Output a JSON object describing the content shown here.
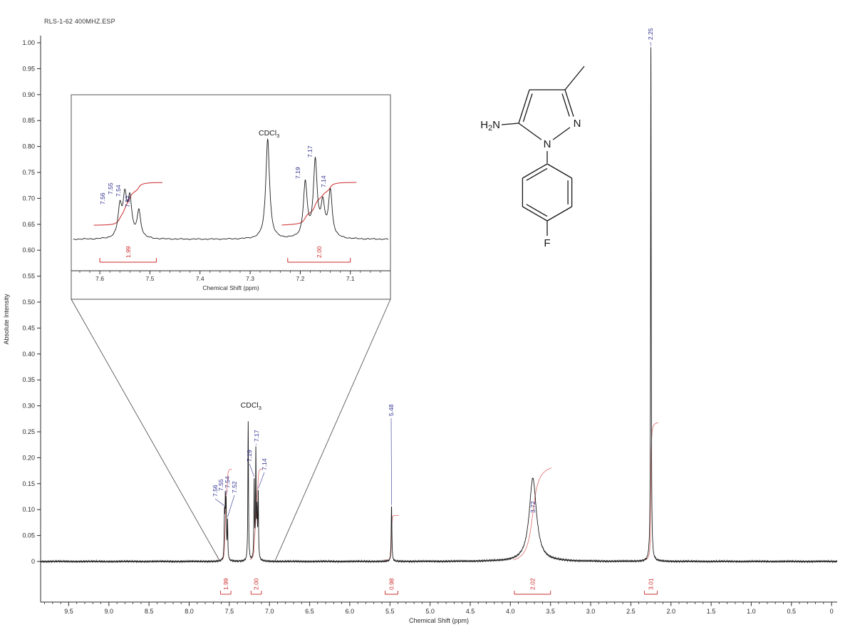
{
  "chart_data": {
    "type": "line",
    "title": "RLS-1-62 400MHZ.ESP",
    "xlabel": "Chemical Shift (ppm)",
    "ylabel": "Absolute Intensity",
    "x_axis_reversed": true,
    "xlim": [
      9.85,
      -0.07
    ],
    "ylim": [
      0,
      1.0
    ],
    "x_ticks": [
      "9.5",
      "9.0",
      "8.5",
      "8.0",
      "7.5",
      "7.0",
      "6.5",
      "6.0",
      "5.5",
      "5.0",
      "4.5",
      "4.0",
      "3.5",
      "3.0",
      "2.5",
      "2.0",
      "1.5",
      "1.0",
      "0.5",
      "0"
    ],
    "y_ticks": [
      "1.00",
      "0.95",
      "0.90",
      "0.85",
      "0.80",
      "0.75",
      "0.70",
      "0.65",
      "0.60",
      "0.55",
      "0.50",
      "0.45",
      "0.40",
      "0.35",
      "0.30",
      "0.25",
      "0.20",
      "0.15",
      "0.10",
      "0.05",
      "0"
    ],
    "solvent_label": "CDCl3",
    "peaks": [
      {
        "ppm": 7.56,
        "h": 0.08,
        "w": 0.0045
      },
      {
        "ppm": 7.55,
        "h": 0.105,
        "w": 0.0045
      },
      {
        "ppm": 7.54,
        "h": 0.1,
        "w": 0.0045
      },
      {
        "ppm": 7.522,
        "h": 0.072,
        "w": 0.0045
      },
      {
        "ppm": 7.265,
        "h": 0.27,
        "w": 0.0045
      },
      {
        "ppm": 7.19,
        "h": 0.148,
        "w": 0.0045
      },
      {
        "ppm": 7.17,
        "h": 0.205,
        "w": 0.0045
      },
      {
        "ppm": 7.155,
        "h": 0.085,
        "w": 0.0045
      },
      {
        "ppm": 7.14,
        "h": 0.125,
        "w": 0.0045
      },
      {
        "ppm": 5.48,
        "h": 0.105,
        "w": 0.005
      },
      {
        "ppm": 3.72,
        "h": 0.16,
        "w": 0.055
      },
      {
        "ppm": 2.25,
        "h": 0.99,
        "w": 0.0045
      }
    ],
    "peak_labels": [
      {
        "ppm": 7.56,
        "text": "7.56"
      },
      {
        "ppm": 7.55,
        "text": "7.55"
      },
      {
        "ppm": 7.54,
        "text": "7.54"
      },
      {
        "ppm": 7.522,
        "text": "7.52"
      },
      {
        "ppm": 7.19,
        "text": "7.19"
      },
      {
        "ppm": 7.17,
        "text": "7.17"
      },
      {
        "ppm": 7.14,
        "text": "7.14"
      },
      {
        "ppm": 5.48,
        "text": "5.48"
      },
      {
        "ppm": 3.72,
        "text": "3.72"
      },
      {
        "ppm": 2.25,
        "text": "2.25"
      }
    ],
    "integrals": [
      {
        "from": 7.61,
        "to": 7.48,
        "value": "1.99"
      },
      {
        "from": 7.23,
        "to": 7.1,
        "value": "2.00"
      },
      {
        "from": 5.56,
        "to": 5.4,
        "value": "0.98"
      },
      {
        "from": 3.95,
        "to": 3.5,
        "value": "2.02"
      },
      {
        "from": 2.33,
        "to": 2.17,
        "value": "3.01"
      }
    ],
    "inset": {
      "xlim": [
        7.657,
        7.02
      ],
      "xlabel": "Chemical Shift (ppm)",
      "x_ticks": [
        "7.6",
        "7.5",
        "7.4",
        "7.3",
        "7.2",
        "7.1"
      ],
      "solvent_label": "CDCl3",
      "peak_labels": [
        {
          "ppm": 7.56,
          "text": "7.56"
        },
        {
          "ppm": 7.55,
          "text": "7.55"
        },
        {
          "ppm": 7.54,
          "text": "7.54"
        },
        {
          "ppm": 7.522,
          "text": "7.52"
        },
        {
          "ppm": 7.19,
          "text": "7.19"
        },
        {
          "ppm": 7.17,
          "text": "7.17"
        },
        {
          "ppm": 7.14,
          "text": "7.14"
        }
      ],
      "integrals": [
        {
          "from": 7.6,
          "to": 7.487,
          "value": "1.99"
        },
        {
          "from": 7.225,
          "to": 7.1,
          "value": "2.00"
        }
      ]
    }
  },
  "structure": {
    "atom_labels": {
      "amino": "H2N",
      "n1": "N",
      "n2": "N",
      "fluorine": "F"
    }
  },
  "colors": {
    "spectrum": "#1c1c1c",
    "peak_label": "#2e2e8f",
    "integral": "#cc2a2a",
    "integral_curve": "#e07a7a",
    "axis": "#2a2a2a",
    "inset_border": "#555555",
    "background": "#ffffff"
  }
}
